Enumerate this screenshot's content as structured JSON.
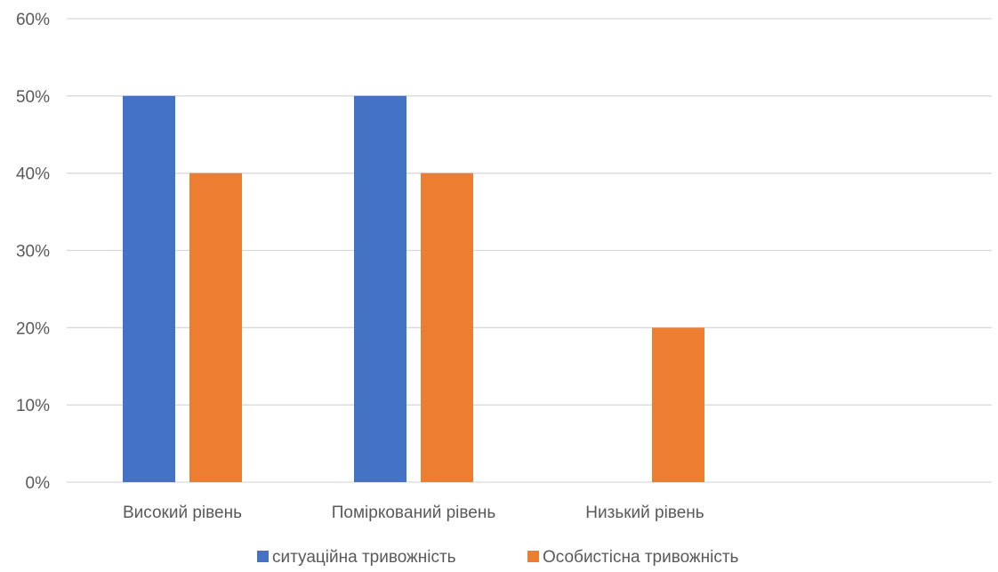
{
  "chart_data": {
    "type": "bar",
    "title": "",
    "xlabel": "",
    "ylabel": "",
    "categories": [
      "Високий рівень",
      "Помірковaний рівень",
      "Низький рівень"
    ],
    "series": [
      {
        "name": "ситуаційна тривожність",
        "values": [
          50,
          50,
          0
        ],
        "color": "#4472C4"
      },
      {
        "name": "Особистісна тривожність",
        "values": [
          40,
          40,
          20
        ],
        "color": "#ED7D31"
      }
    ],
    "ylim": [
      0,
      60
    ],
    "yticks": [
      0,
      10,
      20,
      30,
      40,
      50,
      60
    ],
    "tick_format": "{v}%",
    "grid": true,
    "legend_position": "bottom"
  }
}
